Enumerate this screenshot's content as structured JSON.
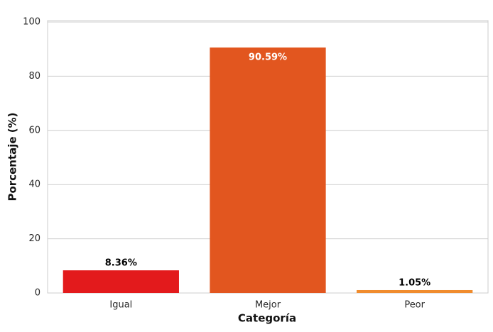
{
  "chart_data": {
    "type": "bar",
    "x_label": "Categoría",
    "y_label": "Porcentaje (%)",
    "categories": [
      "Igual",
      "Mejor",
      "Peor"
    ],
    "values": [
      8.36,
      90.59,
      1.05
    ],
    "value_labels": [
      "8.36%",
      "90.59%",
      "1.05%"
    ],
    "colors": [
      "#e31a1c",
      "#e2561f",
      "#f08c2e"
    ],
    "ylim": [
      0,
      100
    ],
    "yticks": [
      0,
      20,
      40,
      60,
      80,
      100
    ],
    "grid": true
  }
}
